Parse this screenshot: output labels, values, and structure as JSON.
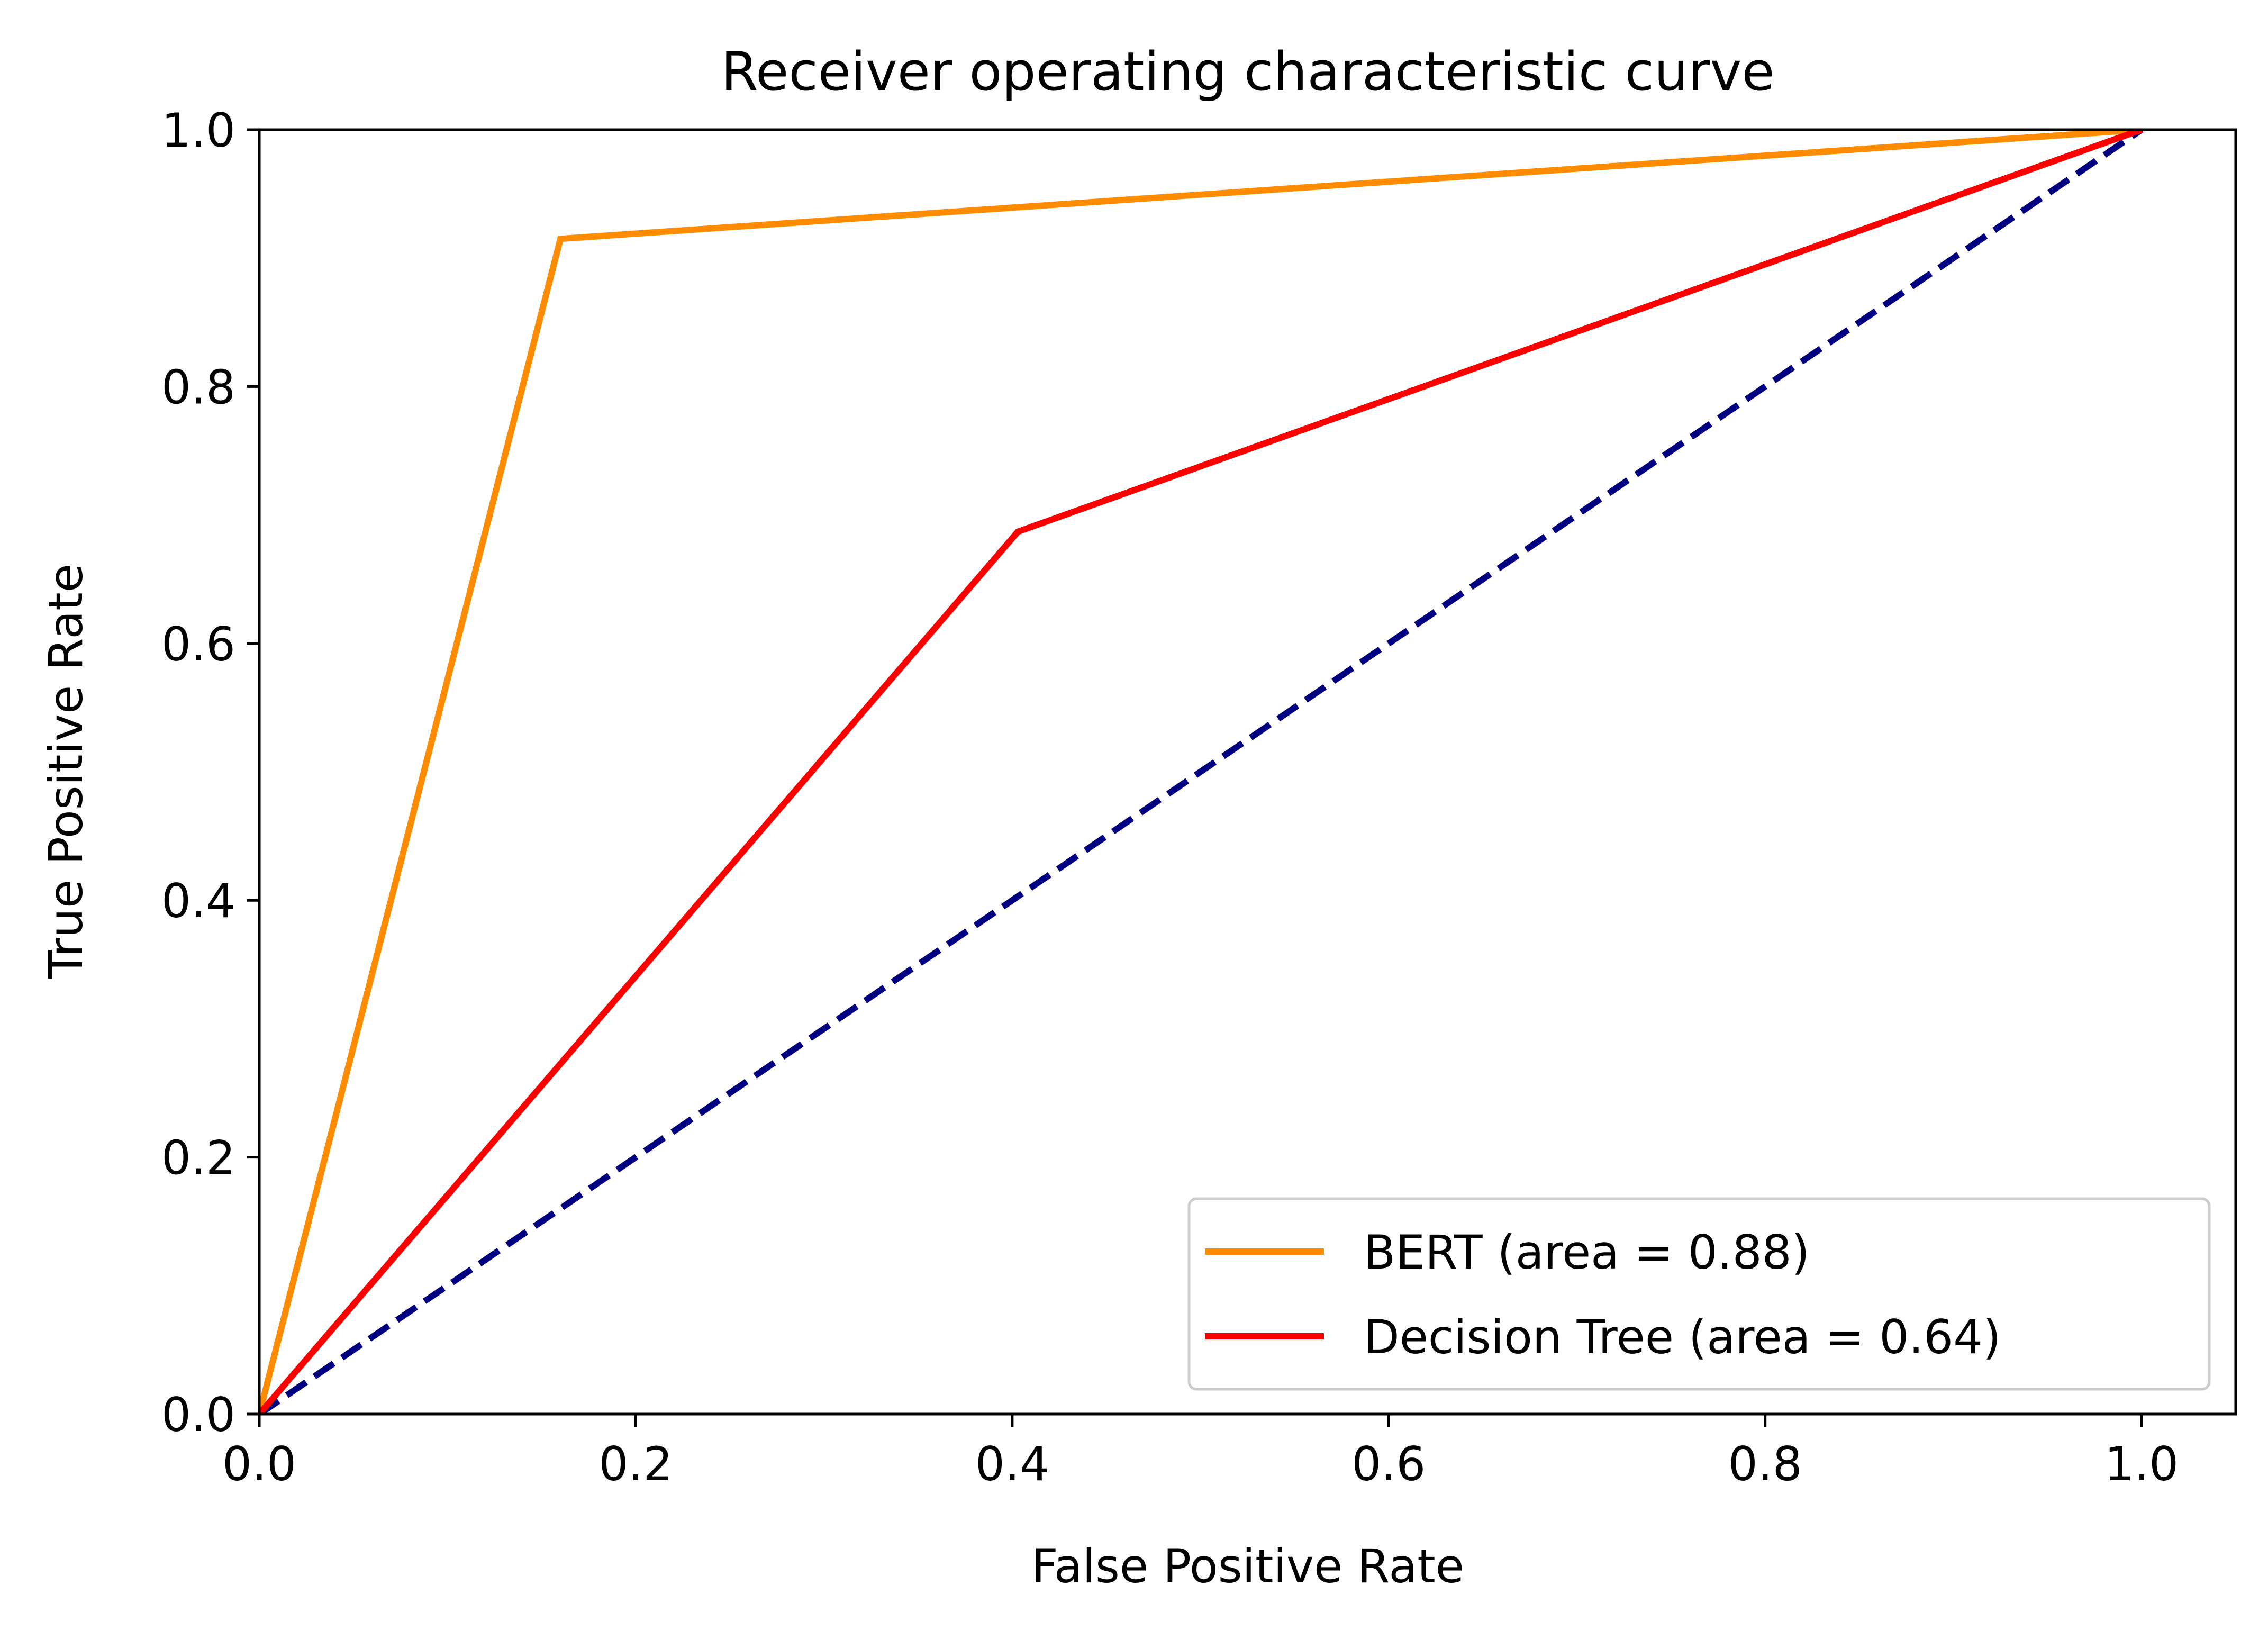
{
  "chart_data": {
    "type": "line",
    "title": "Receiver operating characteristic curve",
    "xlabel": "False Positive Rate",
    "ylabel": "True Positive Rate",
    "xlim": [
      0.0,
      1.05
    ],
    "ylim": [
      0.0,
      1.0
    ],
    "xticks": [
      "0.0",
      "0.2",
      "0.4",
      "0.6",
      "0.8",
      "1.0"
    ],
    "yticks": [
      "0.0",
      "0.2",
      "0.4",
      "0.6",
      "0.8",
      "1.0"
    ],
    "grid": false,
    "legend_position": "lower-right",
    "series": [
      {
        "name": "BERT (area = 0.88)",
        "color": "#ff8c00",
        "style": "solid",
        "x": [
          0.0,
          0.16,
          1.0
        ],
        "y": [
          0.0,
          0.915,
          1.0
        ]
      },
      {
        "name": "Decision Tree (area = 0.64)",
        "color": "#ff0000",
        "style": "solid",
        "x": [
          0.0,
          0.403,
          1.0
        ],
        "y": [
          0.0,
          0.687,
          1.0
        ]
      },
      {
        "color": "#000080",
        "style": "dashed",
        "x": [
          0.0,
          1.0
        ],
        "y": [
          0.0,
          1.0
        ]
      }
    ]
  }
}
